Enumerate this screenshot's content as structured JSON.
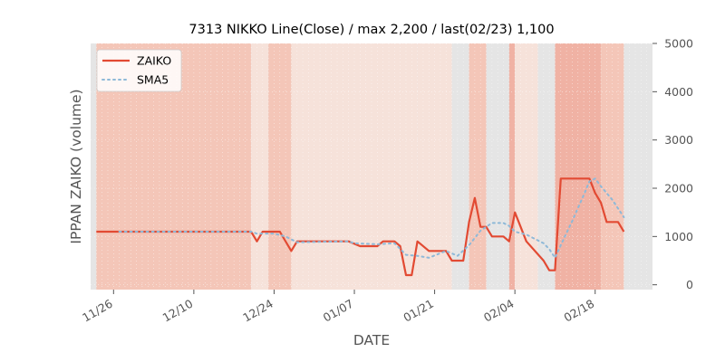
{
  "chart_data": {
    "type": "line",
    "title": "7313 NIKKO Line(Close) / max 2,200 / last(02/23) 1,100",
    "xlabel": "DATE",
    "ylabel": "IPPAN ZAIKO (volume)",
    "ylim": [
      -100,
      5000
    ],
    "yticks": [
      0,
      1000,
      2000,
      3000,
      4000,
      5000
    ],
    "y_tick_labels": [
      "0",
      "1000",
      "2000",
      "3000",
      "4000",
      "5000"
    ],
    "x_tick_labels": [
      "11/26",
      "12/10",
      "12/24",
      "01/07",
      "01/21",
      "02/04",
      "02/18"
    ],
    "x_tick_positions": [
      4,
      18,
      32,
      46,
      60,
      74,
      88
    ],
    "xlim": [
      0,
      98
    ],
    "grid": true,
    "legend_position": "top-left",
    "colors": {
      "zaiko": "#e24a33",
      "sma5": "#8eb9d8",
      "band_light": "#f6e2da",
      "band_mid": "#f4c6b8",
      "band_dark": "#f0b2a4",
      "plot_bg": "#e5e5e5"
    },
    "series": [
      {
        "name": "ZAIKO",
        "style": "solid",
        "points": [
          [
            1,
            1100
          ],
          [
            28,
            1100
          ],
          [
            29,
            900
          ],
          [
            30,
            1100
          ],
          [
            33,
            1100
          ],
          [
            35,
            700
          ],
          [
            36,
            900
          ],
          [
            45,
            900
          ],
          [
            47,
            800
          ],
          [
            50,
            800
          ],
          [
            51,
            900
          ],
          [
            53,
            900
          ],
          [
            54,
            800
          ],
          [
            55,
            200
          ],
          [
            56,
            200
          ],
          [
            57,
            900
          ],
          [
            59,
            700
          ],
          [
            62,
            700
          ],
          [
            63,
            500
          ],
          [
            65,
            500
          ],
          [
            66,
            1300
          ],
          [
            67,
            1800
          ],
          [
            68,
            1200
          ],
          [
            69,
            1200
          ],
          [
            70,
            1000
          ],
          [
            72,
            1000
          ],
          [
            73,
            900
          ],
          [
            74,
            1500
          ],
          [
            75,
            1200
          ],
          [
            76,
            900
          ],
          [
            79,
            500
          ],
          [
            80,
            300
          ],
          [
            81,
            300
          ],
          [
            82,
            2200
          ],
          [
            87,
            2200
          ],
          [
            88,
            1900
          ],
          [
            89,
            1700
          ],
          [
            90,
            1300
          ],
          [
            92,
            1300
          ],
          [
            93,
            1100
          ]
        ]
      },
      {
        "name": "SMA5",
        "style": "dotted",
        "points": [
          [
            5,
            1100
          ],
          [
            28,
            1100
          ],
          [
            29,
            1060
          ],
          [
            32,
            1060
          ],
          [
            34,
            1000
          ],
          [
            36,
            880
          ],
          [
            45,
            900
          ],
          [
            46,
            860
          ],
          [
            50,
            840
          ],
          [
            53,
            860
          ],
          [
            55,
            620
          ],
          [
            57,
            600
          ],
          [
            59,
            560
          ],
          [
            62,
            700
          ],
          [
            64,
            600
          ],
          [
            66,
            820
          ],
          [
            68,
            1120
          ],
          [
            70,
            1280
          ],
          [
            72,
            1280
          ],
          [
            73,
            1220
          ],
          [
            74,
            1100
          ],
          [
            76,
            1040
          ],
          [
            78,
            920
          ],
          [
            79,
            860
          ],
          [
            80,
            740
          ],
          [
            81,
            560
          ],
          [
            82,
            820
          ],
          [
            84,
            1320
          ],
          [
            86,
            1860
          ],
          [
            87,
            2140
          ],
          [
            88,
            2200
          ],
          [
            89,
            2040
          ],
          [
            91,
            1760
          ],
          [
            93,
            1400
          ]
        ]
      }
    ],
    "bands": [
      {
        "from": 1,
        "to": 28,
        "shade": "band_mid"
      },
      {
        "from": 28,
        "to": 31,
        "shade": "band_light"
      },
      {
        "from": 31,
        "to": 35,
        "shade": "band_mid"
      },
      {
        "from": 35,
        "to": 55,
        "shade": "band_light"
      },
      {
        "from": 55,
        "to": 57,
        "shade": "band_light"
      },
      {
        "from": 57,
        "to": 63,
        "shade": "band_light"
      },
      {
        "from": 66,
        "to": 69,
        "shade": "band_mid"
      },
      {
        "from": 73,
        "to": 74,
        "shade": "band_dark"
      },
      {
        "from": 74,
        "to": 78,
        "shade": "band_light"
      },
      {
        "from": 81,
        "to": 89,
        "shade": "band_dark"
      },
      {
        "from": 89,
        "to": 93,
        "shade": "band_mid"
      }
    ]
  }
}
